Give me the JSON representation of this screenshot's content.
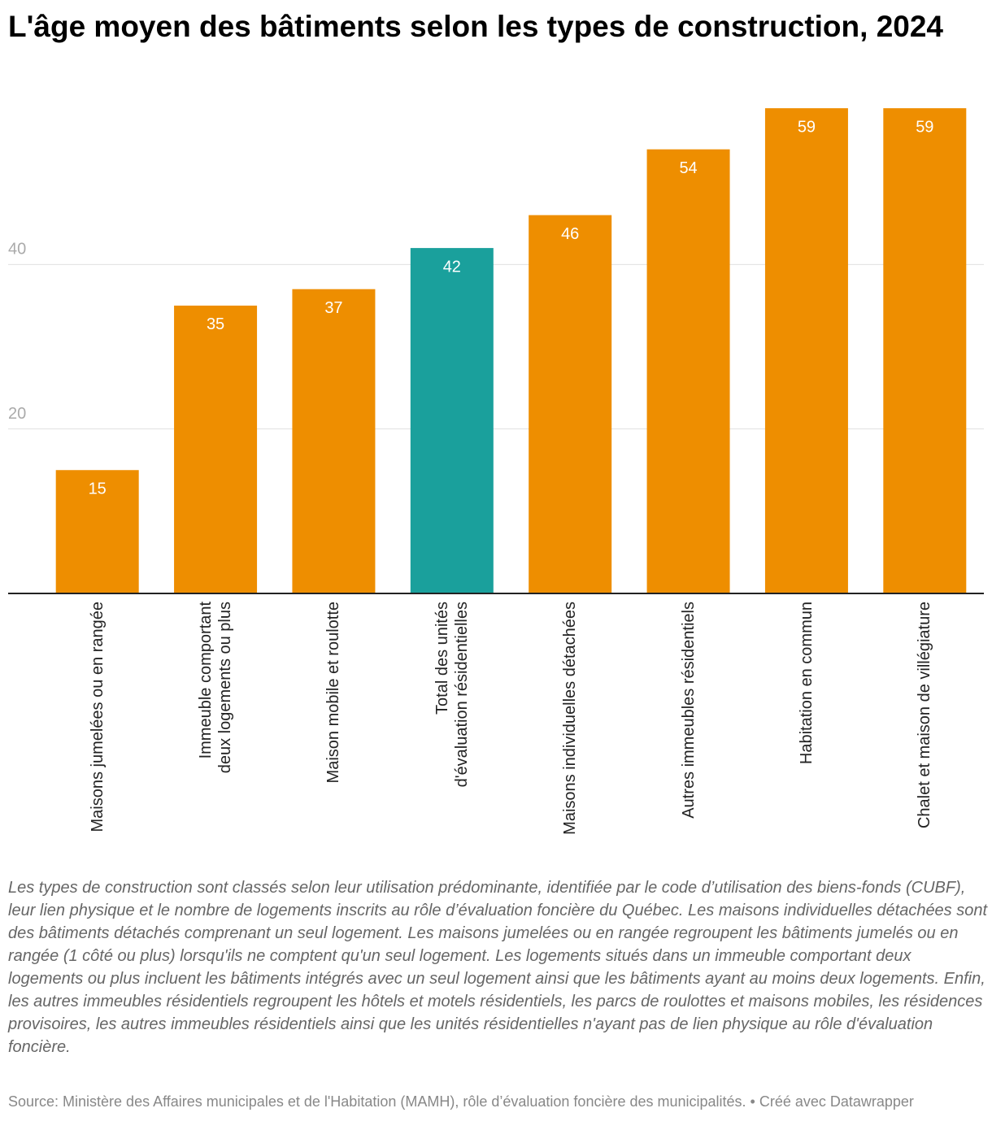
{
  "chart_data": {
    "type": "bar",
    "title": "L'âge moyen des bâtiments selon les types de construction, 2024",
    "categories": [
      "Maisons jumelées ou en rangée",
      "Immeuble comportant deux logements ou plus",
      "Maison mobile et roulotte",
      "Total des unités d'évaluation résidentielles",
      "Maisons individuelles détachées",
      "Autres immeubles résidentiels",
      "Habitation en commun",
      "Chalet et maison de villégiature"
    ],
    "values": [
      15,
      35,
      37,
      42,
      46,
      54,
      59,
      59
    ],
    "colors": [
      "#ee8e00",
      "#ee8e00",
      "#ee8e00",
      "#1aa09c",
      "#ee8e00",
      "#ee8e00",
      "#ee8e00",
      "#ee8e00"
    ],
    "ylim": [
      0,
      60
    ],
    "yticks": [
      20,
      40
    ],
    "grid": true,
    "notes": "Les types de construction sont classés selon leur utilisation prédominante, identifiée par le code d’utilisation des biens-fonds (CUBF), leur lien physique et le nombre de logements inscrits au rôle d’évaluation foncière du Québec. Les maisons individuelles détachées sont des bâtiments détachés comprenant un seul logement. Les maisons jumelées ou en rangée regroupent les bâtiments jumelés ou en rangée (1 côté ou plus) lorsqu'ils ne comptent qu'un seul logement. Les logements situés dans un immeuble comportant deux logements ou plus incluent les bâtiments intégrés avec un seul logement ainsi que les bâtiments ayant au moins deux logements. Enfin, les autres immeubles résidentiels regroupent les hôtels et motels résidentiels, les parcs de roulottes et maisons mobiles, les résidences provisoires, les autres immeubles résidentiels ainsi que les unités résidentielles n'ayant pas de lien physique au rôle d'évaluation foncière.",
    "source": "Source: Ministère des Affaires municipales et de l'Habitation (MAMH), rôle d’évaluation foncière des municipalités. • Créé avec Datawrapper"
  }
}
